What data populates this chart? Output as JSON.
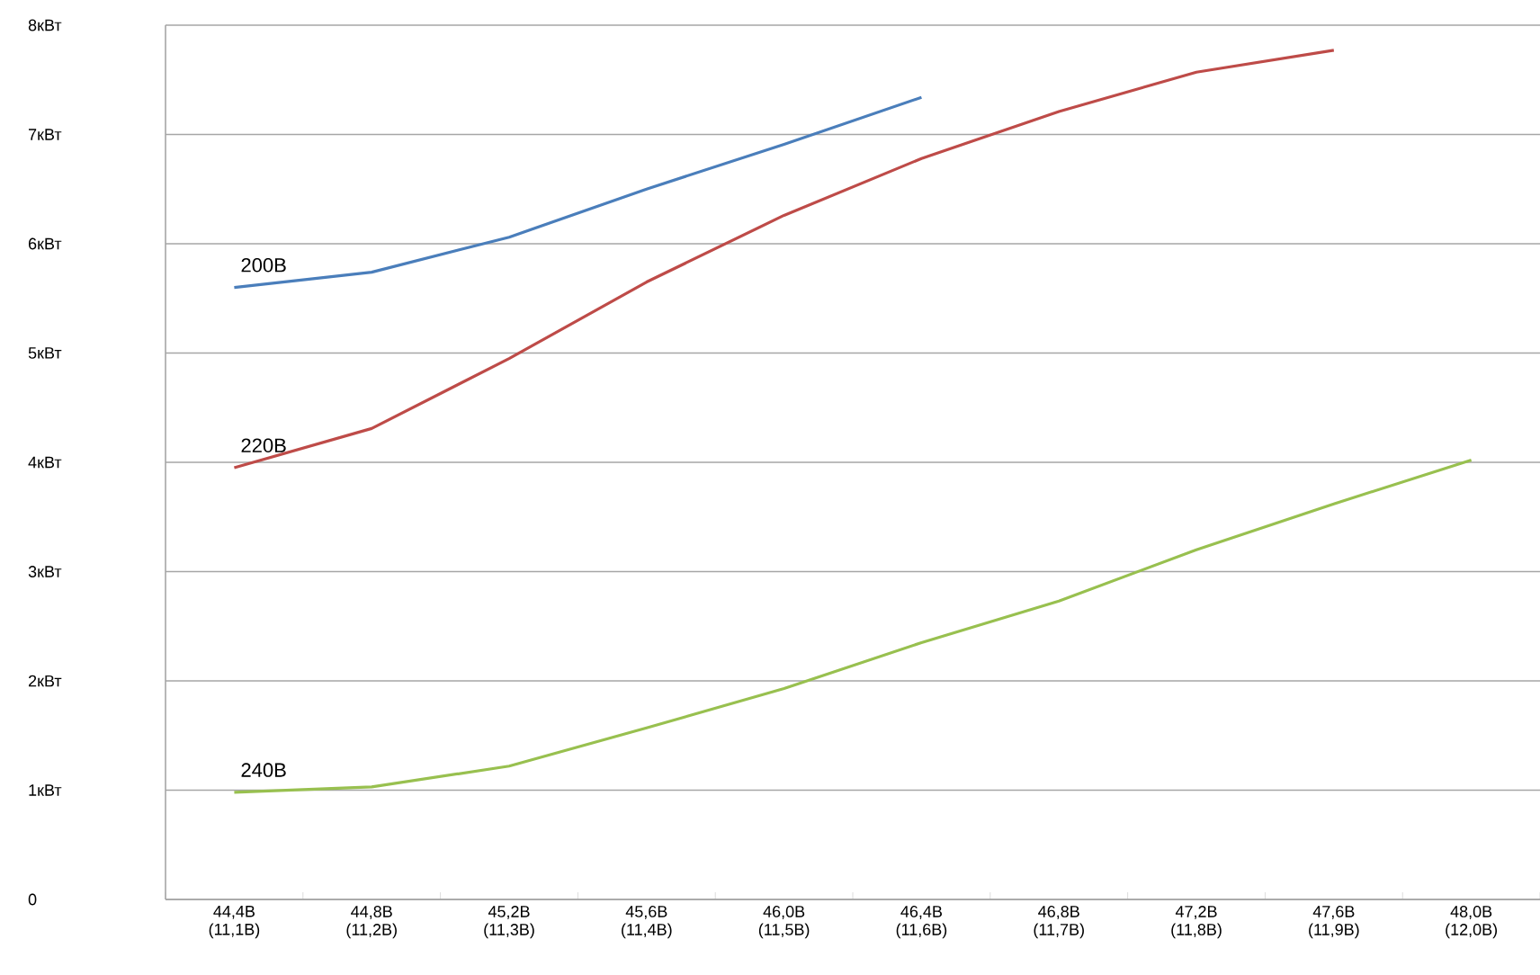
{
  "chart_data": {
    "type": "line",
    "categories": [
      "44,4В (11,1В)",
      "44,8В (11,2В)",
      "45,2В (11,3В)",
      "45,6В (11,4В)",
      "46,0В (11,5В)",
      "46,4В (11,6В)",
      "46,8В (11,7В)",
      "47,2В (11,8В)",
      "47,6В (11,9В)",
      "48,0В (12,0В)"
    ],
    "series": [
      {
        "name": "200В",
        "color": "#4a7ebb",
        "values": [
          5.6,
          5.74,
          6.06,
          6.5,
          6.91,
          7.34,
          null,
          null,
          null,
          null
        ]
      },
      {
        "name": "220В",
        "color": "#be4b48",
        "values": [
          3.95,
          4.31,
          4.95,
          5.65,
          6.26,
          6.78,
          7.21,
          7.57,
          7.77,
          null
        ]
      },
      {
        "name": "240В",
        "color": "#98c04f",
        "values": [
          0.98,
          1.03,
          1.22,
          1.57,
          1.93,
          2.35,
          2.73,
          3.2,
          3.62,
          4.02
        ]
      }
    ],
    "ylim": [
      0,
      8
    ],
    "yticks": [
      0,
      {
        "value": 1,
        "label": "1кВт"
      },
      {
        "value": 2,
        "label": "2кВт"
      },
      {
        "value": 3,
        "label": "3кВт"
      },
      {
        "value": 4,
        "label": "4кВт"
      },
      {
        "value": 5,
        "label": "5кВт"
      },
      {
        "value": 6,
        "label": "6кВт"
      },
      {
        "value": 7,
        "label": "7кВт"
      },
      {
        "value": 8,
        "label": "8кВт"
      }
    ],
    "grid": "y",
    "marker": "none",
    "line_style": "solid"
  }
}
